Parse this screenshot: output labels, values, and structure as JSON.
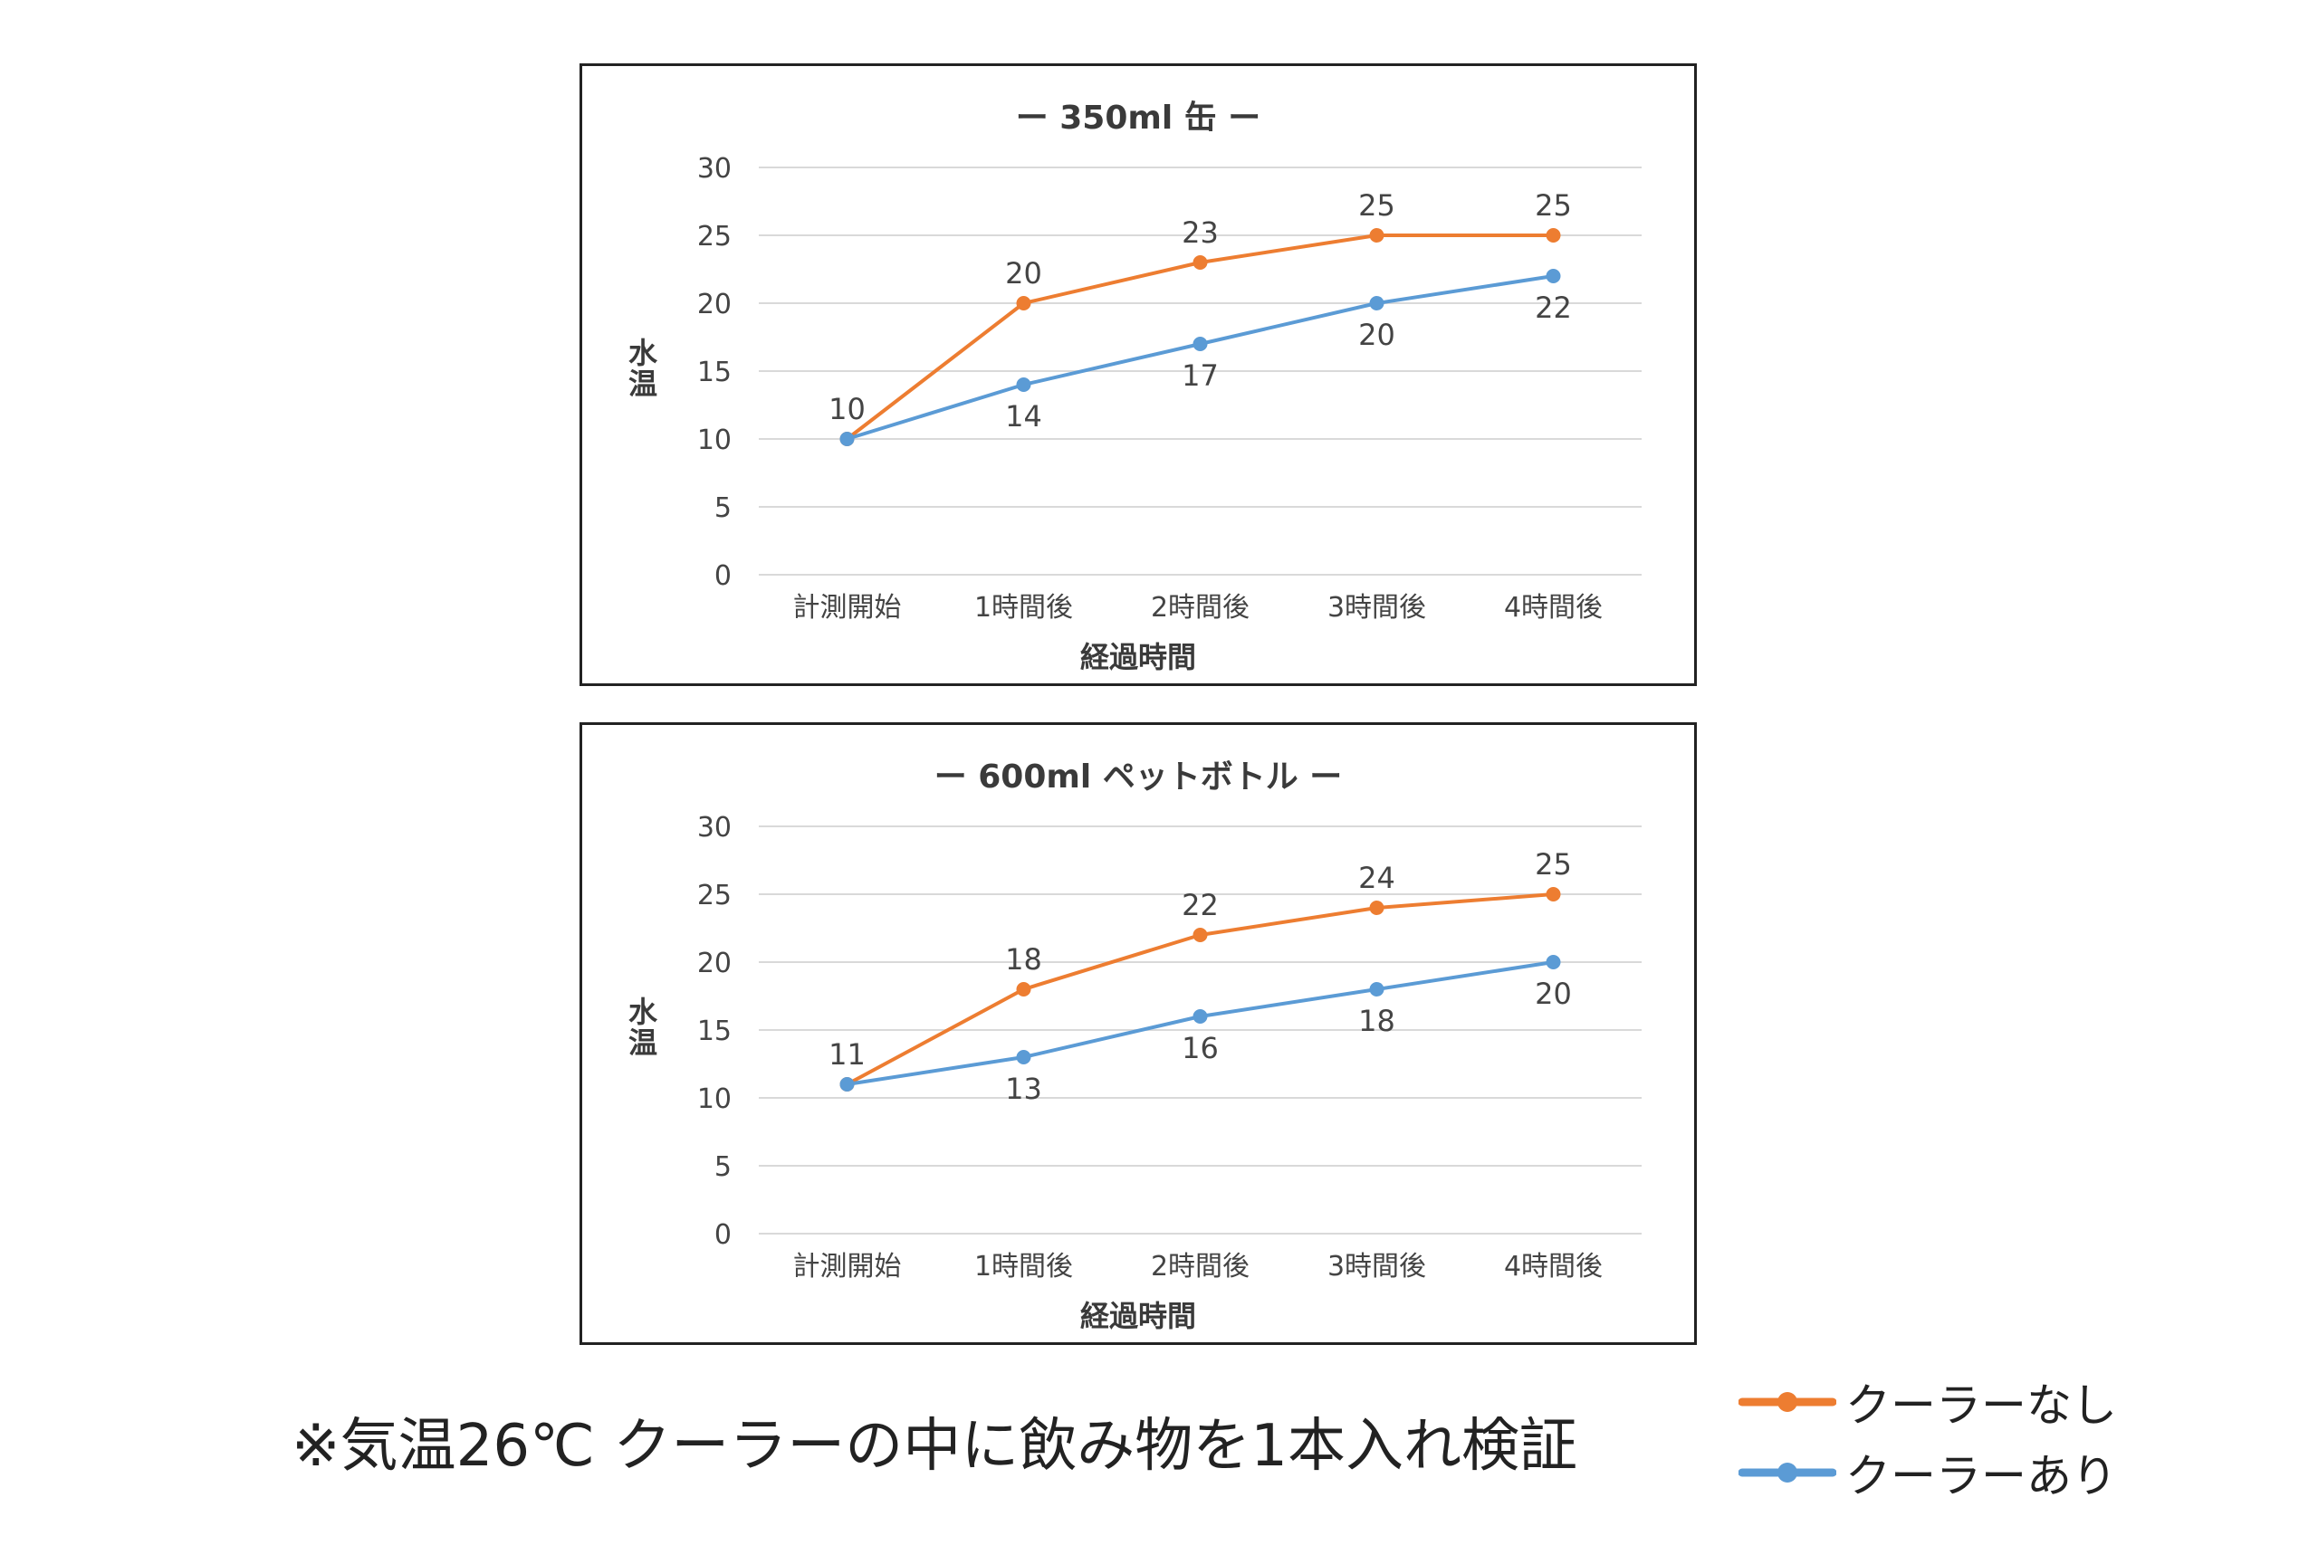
{
  "chart_data": [
    {
      "type": "line",
      "title": "ー 350ml 缶 ー",
      "xlabel": "経過時間",
      "ylabel": "水温",
      "categories": [
        "計測開始",
        "1時間後",
        "2時間後",
        "3時間後",
        "4時間後"
      ],
      "ylim": [
        0,
        30
      ],
      "yticks": [
        "0",
        "5",
        "10",
        "15",
        "20",
        "25",
        "30"
      ],
      "grid": true,
      "series": [
        {
          "name": "クーラーなし",
          "color": "#ED7D31",
          "values": [
            10,
            20,
            23,
            25,
            25
          ]
        },
        {
          "name": "クーラーあり",
          "color": "#5B9BD5",
          "values": [
            10,
            14,
            17,
            20,
            22
          ]
        }
      ]
    },
    {
      "type": "line",
      "title": "ー 600ml ペットボトル ー",
      "xlabel": "経過時間",
      "ylabel": "水温",
      "categories": [
        "計測開始",
        "1時間後",
        "2時間後",
        "3時間後",
        "4時間後"
      ],
      "ylim": [
        0,
        30
      ],
      "yticks": [
        "0",
        "5",
        "10",
        "15",
        "20",
        "25",
        "30"
      ],
      "grid": true,
      "series": [
        {
          "name": "クーラーなし",
          "color": "#ED7D31",
          "values": [
            11,
            18,
            22,
            24,
            25
          ]
        },
        {
          "name": "クーラーあり",
          "color": "#5B9BD5",
          "values": [
            11,
            13,
            16,
            18,
            20
          ]
        }
      ]
    }
  ],
  "footnote": "※気温26℃ クーラーの中に飲み物を1本入れ検証",
  "legend": [
    {
      "label": "クーラーなし",
      "color": "#ED7D31"
    },
    {
      "label": "クーラーあり",
      "color": "#5B9BD5"
    }
  ]
}
